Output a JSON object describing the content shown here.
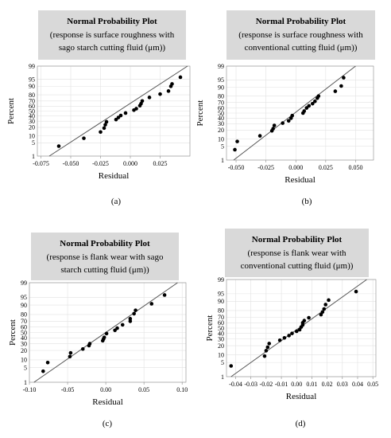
{
  "chart_data": [
    {
      "type": "scatter",
      "title": "Normal Probability Plot",
      "subtitle_lines": [
        "(response is surface roughness with",
        "sago starch cutting fluid (μm))"
      ],
      "xlabel": "Residual",
      "ylabel": "Percent",
      "caption": "(a)",
      "xlim": [
        -0.078,
        0.05
      ],
      "x_ticks": [
        -0.075,
        -0.05,
        -0.025,
        0,
        0.025
      ],
      "x_tick_labels": [
        "-0.075",
        "-0.050",
        "-0.025",
        "0.000",
        "0.025"
      ],
      "y_ticks": [
        1,
        5,
        10,
        20,
        30,
        40,
        50,
        60,
        70,
        80,
        90,
        95,
        99
      ],
      "y_tick_labels": [
        "1",
        "5",
        "10",
        "20",
        "30",
        "40",
        "50",
        "60",
        "70",
        "80",
        "90",
        "95",
        "99"
      ],
      "fit_line": [
        [
          -0.068,
          1
        ],
        [
          0.048,
          99
        ]
      ],
      "points": [
        [
          -0.06,
          3.5
        ],
        [
          -0.039,
          8
        ],
        [
          -0.025,
          14
        ],
        [
          -0.022,
          19
        ],
        [
          -0.021,
          24
        ],
        [
          -0.02,
          29
        ],
        [
          -0.012,
          33
        ],
        [
          -0.01,
          37
        ],
        [
          -0.008,
          41
        ],
        [
          -0.004,
          46
        ],
        [
          0.003,
          52
        ],
        [
          0.005,
          55
        ],
        [
          0.008,
          61
        ],
        [
          0.009,
          65
        ],
        [
          0.01,
          70
        ],
        [
          0.016,
          76
        ],
        [
          0.025,
          81
        ],
        [
          0.032,
          85
        ],
        [
          0.034,
          90
        ],
        [
          0.035,
          92
        ],
        [
          0.042,
          96
        ]
      ]
    },
    {
      "type": "scatter",
      "title": "Normal Probability Plot",
      "subtitle_lines": [
        "(response is surface roughness with",
        "conventional cutting fluid (μm))"
      ],
      "xlabel": "Residual",
      "ylabel": "Percent",
      "caption": "(b)",
      "xlim": [
        -0.058,
        0.065
      ],
      "x_ticks": [
        -0.05,
        -0.025,
        0,
        0.025,
        0.05
      ],
      "x_tick_labels": [
        "-0.050",
        "-0.025",
        "0.000",
        "0.025",
        "0.050"
      ],
      "y_ticks": [
        1,
        5,
        10,
        20,
        30,
        40,
        50,
        60,
        70,
        80,
        90,
        95,
        99
      ],
      "y_tick_labels": [
        "1",
        "5",
        "10",
        "20",
        "30",
        "40",
        "50",
        "60",
        "70",
        "80",
        "90",
        "95",
        "99"
      ],
      "fit_line": [
        [
          -0.052,
          1
        ],
        [
          0.05,
          99
        ]
      ],
      "points": [
        [
          -0.051,
          3.5
        ],
        [
          -0.049,
          8
        ],
        [
          -0.03,
          13
        ],
        [
          -0.02,
          19
        ],
        [
          -0.019,
          22
        ],
        [
          -0.018,
          27
        ],
        [
          -0.011,
          31
        ],
        [
          -0.006,
          35
        ],
        [
          -0.004,
          40
        ],
        [
          -0.003,
          45
        ],
        [
          0.006,
          50
        ],
        [
          0.007,
          54
        ],
        [
          0.009,
          60
        ],
        [
          0.011,
          64
        ],
        [
          0.014,
          68
        ],
        [
          0.016,
          72
        ],
        [
          0.018,
          77
        ],
        [
          0.019,
          80
        ],
        [
          0.033,
          86
        ],
        [
          0.038,
          91
        ],
        [
          0.04,
          96
        ]
      ]
    },
    {
      "type": "scatter",
      "title": "Normal Probability Plot",
      "subtitle_lines": [
        "(response is flank wear with sago",
        "starch cutting fluid (μm))"
      ],
      "xlabel": "Residual",
      "ylabel": "Percent",
      "caption": "(c)",
      "xlim": [
        -0.1,
        0.105
      ],
      "x_ticks": [
        -0.1,
        -0.05,
        0,
        0.05,
        0.1
      ],
      "x_tick_labels": [
        "-0.10",
        "-0.05",
        "0.00",
        "0.05",
        "0.10"
      ],
      "y_ticks": [
        1,
        5,
        10,
        20,
        30,
        40,
        50,
        60,
        70,
        80,
        90,
        95,
        99
      ],
      "y_tick_labels": [
        "1",
        "5",
        "10",
        "20",
        "30",
        "40",
        "50",
        "60",
        "70",
        "80",
        "90",
        "95",
        "99"
      ],
      "fit_line": [
        [
          -0.094,
          1
        ],
        [
          0.094,
          99
        ]
      ],
      "points": [
        [
          -0.082,
          3.5
        ],
        [
          -0.076,
          8
        ],
        [
          -0.047,
          13
        ],
        [
          -0.046,
          17
        ],
        [
          -0.03,
          22
        ],
        [
          -0.022,
          27
        ],
        [
          -0.021,
          30
        ],
        [
          -0.004,
          35
        ],
        [
          -0.003,
          38
        ],
        [
          -0.002,
          41
        ],
        [
          0.001,
          48
        ],
        [
          0.012,
          54
        ],
        [
          0.015,
          58
        ],
        [
          0.022,
          64
        ],
        [
          0.032,
          70
        ],
        [
          0.032,
          74
        ],
        [
          0.037,
          81
        ],
        [
          0.039,
          85
        ],
        [
          0.06,
          91
        ],
        [
          0.077,
          96
        ]
      ]
    },
    {
      "type": "scatter",
      "title": "Normal Probability Plot",
      "subtitle_lines": [
        "(response is flank wear with",
        "conventional cutting fluid (μm))"
      ],
      "xlabel": "Residual",
      "ylabel": "Percent",
      "caption": "(d)",
      "xlim": [
        -0.046,
        0.052
      ],
      "x_ticks": [
        -0.04,
        -0.03,
        -0.02,
        -0.01,
        0,
        0.01,
        0.02,
        0.03,
        0.04,
        0.05
      ],
      "x_tick_labels": [
        "-0.04",
        "-0.03",
        "-0.02",
        "-0.01",
        "0.00",
        "0.01",
        "0.02",
        "0.03",
        "0.04",
        "0.05"
      ],
      "y_ticks": [
        1,
        5,
        10,
        20,
        30,
        40,
        50,
        60,
        70,
        80,
        90,
        95,
        99
      ],
      "y_tick_labels": [
        "1",
        "5",
        "10",
        "20",
        "30",
        "40",
        "50",
        "60",
        "70",
        "80",
        "90",
        "95",
        "99"
      ],
      "fit_line": [
        [
          -0.043,
          1
        ],
        [
          0.046,
          99
        ]
      ],
      "points": [
        [
          -0.043,
          3.5
        ],
        [
          -0.021,
          9
        ],
        [
          -0.02,
          14
        ],
        [
          -0.019,
          18
        ],
        [
          -0.018,
          23
        ],
        [
          -0.011,
          28
        ],
        [
          -0.008,
          32
        ],
        [
          -0.005,
          36
        ],
        [
          -0.003,
          40
        ],
        [
          0,
          44
        ],
        [
          0.002,
          47
        ],
        [
          0.003,
          52
        ],
        [
          0.004,
          56
        ],
        [
          0.004,
          60
        ],
        [
          0.005,
          64
        ],
        [
          0.008,
          69
        ],
        [
          0.016,
          74
        ],
        [
          0.017,
          78
        ],
        [
          0.018,
          82
        ],
        [
          0.019,
          87
        ],
        [
          0.021,
          91
        ],
        [
          0.039,
          96
        ]
      ]
    }
  ]
}
